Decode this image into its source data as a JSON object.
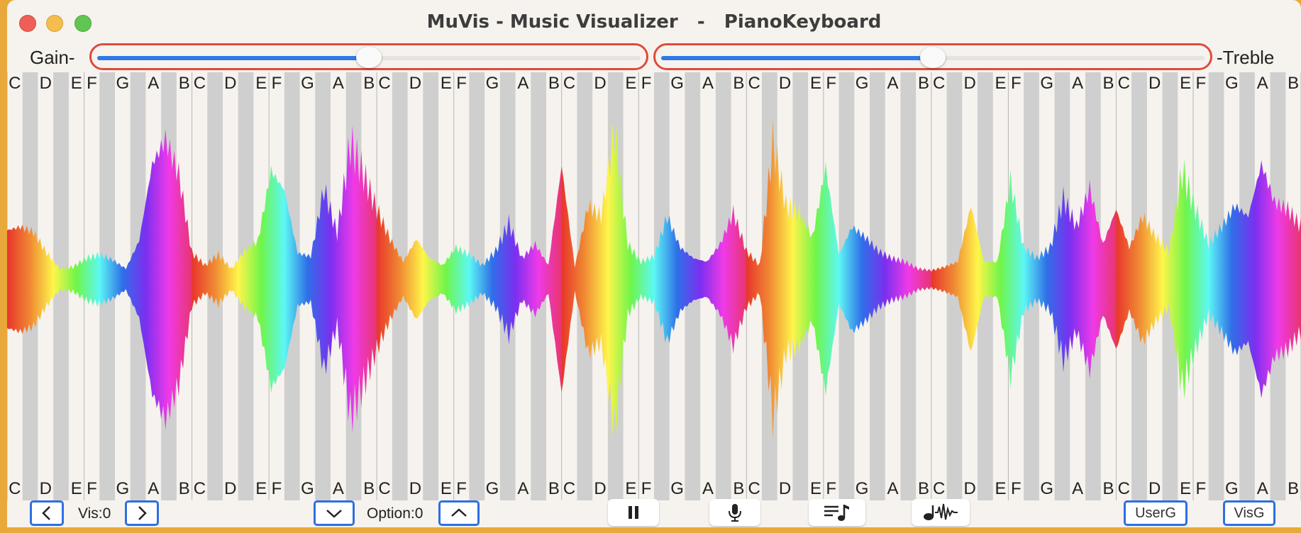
{
  "window": {
    "title": "MuVis - Music Visualizer   -   PianoKeyboard"
  },
  "sliders": {
    "gain_label": "Gain-",
    "treble_label": "-Treble",
    "gain_value": 0.5,
    "treble_value": 0.5
  },
  "keyboard": {
    "top_notes": [
      "C",
      "D",
      "E",
      "F",
      "G",
      "A",
      "B",
      "C",
      "D",
      "E",
      "F",
      "G",
      "A",
      "B",
      "C",
      "D",
      "E",
      "F",
      "G",
      "A",
      "B",
      "C",
      "D",
      "E",
      "F",
      "G",
      "A",
      "B",
      "C",
      "D",
      "E",
      "F",
      "G",
      "A",
      "B",
      "C",
      "D",
      "E",
      "F",
      "G",
      "A",
      "B",
      "C",
      "D",
      "E",
      "F",
      "G",
      "A",
      "B"
    ],
    "bottom_notes": [
      "C",
      "D",
      "E",
      "F",
      "G",
      "A",
      "B",
      "C",
      "D",
      "E",
      "F",
      "G",
      "A",
      "B",
      "C",
      "D",
      "E",
      "F",
      "G",
      "A",
      "B",
      "C",
      "D",
      "E",
      "F",
      "G",
      "A",
      "B",
      "C",
      "D",
      "E",
      "F",
      "G",
      "A",
      "B",
      "C",
      "D",
      "E",
      "F",
      "G",
      "A",
      "B",
      "C",
      "D",
      "E",
      "F",
      "G",
      "A",
      "B"
    ],
    "octaves": 7
  },
  "bottom_bar": {
    "prev_vis_icon": "chevron-left-icon",
    "vis_label": "Vis:0",
    "next_vis_icon": "chevron-right-icon",
    "option_down_icon": "chevron-down-icon",
    "option_label": "Option:0",
    "option_up_icon": "chevron-up-icon",
    "pause_icon": "pause-icon",
    "mic_icon": "microphone-icon",
    "playlist_icon": "music-list-icon",
    "waveform_icon": "waveform-icon",
    "user_button": "UserG",
    "vis_button": "VisG"
  },
  "colors": {
    "slider_border": "#e04a3c",
    "slider_fill": "#2f7ae5",
    "button_border": "#2f6fe0",
    "black_key": "#cfcfcf"
  }
}
